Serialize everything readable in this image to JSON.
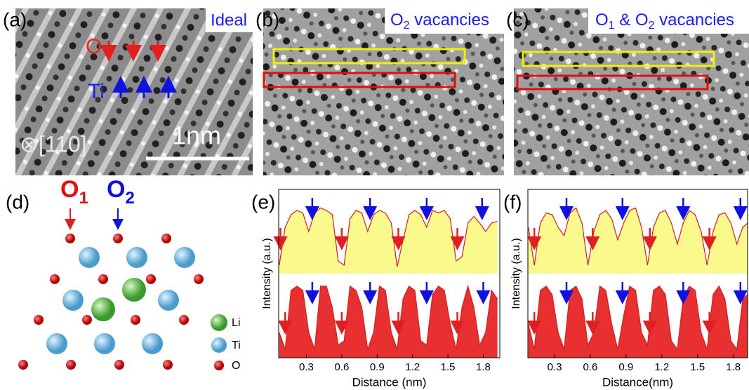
{
  "panels": {
    "a": {
      "label": "(a)",
      "caption": "Ideal",
      "o": "O",
      "ti": "Ti",
      "zone": "⊗[110]",
      "scale": "1nm"
    },
    "b": {
      "label": "(b)",
      "caption": [
        "O",
        "2",
        " vacancies"
      ]
    },
    "c": {
      "label": "(c)",
      "caption": [
        "O",
        "1",
        " & O",
        "2",
        " vacancies"
      ]
    },
    "d": {
      "label": "(d)",
      "o1": [
        "O",
        "1"
      ],
      "o2": [
        "O",
        "2"
      ],
      "legend": [
        "Li",
        "Ti",
        "O"
      ]
    }
  },
  "chart_data": [
    {
      "type": "area",
      "label": "(e)",
      "y_label": "Intensity (a.u.)",
      "x_label": "Distance (nm)",
      "xlim": [
        0.065,
        1.94
      ],
      "xticks": [
        0.3,
        0.6,
        0.9,
        1.2,
        1.5,
        1.8
      ],
      "ylim": [
        0,
        1
      ],
      "x": [
        0.07,
        0.12,
        0.17,
        0.22,
        0.27,
        0.32,
        0.37,
        0.42,
        0.47,
        0.52,
        0.57,
        0.62,
        0.67,
        0.72,
        0.77,
        0.82,
        0.87,
        0.92,
        0.97,
        1.02,
        1.07,
        1.12,
        1.17,
        1.22,
        1.27,
        1.32,
        1.37,
        1.42,
        1.47,
        1.52,
        1.57,
        1.62,
        1.67,
        1.72,
        1.77,
        1.82,
        1.87,
        1.92
      ],
      "series": [
        {
          "color": "#fafa8c",
          "line_color": "#d02020",
          "values": [
            0.1,
            0.55,
            0.7,
            0.75,
            0.72,
            0.5,
            0.72,
            0.78,
            0.75,
            0.7,
            0.15,
            0.1,
            0.65,
            0.75,
            0.72,
            0.5,
            0.7,
            0.75,
            0.72,
            0.6,
            0.08,
            0.4,
            0.7,
            0.75,
            0.7,
            0.55,
            0.75,
            0.72,
            0.75,
            0.65,
            0.15,
            0.2,
            0.6,
            0.68,
            0.6,
            0.5,
            0.6,
            0.62
          ],
          "arrows": [
            {
              "x": 0.08,
              "color": "#e02020"
            },
            {
              "x": 0.35,
              "color": "#1010e0"
            },
            {
              "x": 0.6,
              "color": "#e02020"
            },
            {
              "x": 0.84,
              "color": "#1010e0"
            },
            {
              "x": 1.08,
              "color": "#e02020"
            },
            {
              "x": 1.32,
              "color": "#1010e0"
            },
            {
              "x": 1.58,
              "color": "#e02020"
            },
            {
              "x": 1.79,
              "color": "#1010e0"
            }
          ]
        },
        {
          "color": "#e83030",
          "line_color": "#d02020",
          "values": [
            0.3,
            0.1,
            0.8,
            0.85,
            0.8,
            0.3,
            0.1,
            0.85,
            0.85,
            0.6,
            0.15,
            0.2,
            0.85,
            0.8,
            0.6,
            0.1,
            0.3,
            0.85,
            0.8,
            0.3,
            0.1,
            0.7,
            0.85,
            0.8,
            0.2,
            0.15,
            0.75,
            0.85,
            0.8,
            0.4,
            0.1,
            0.6,
            0.85,
            0.6,
            0.15,
            0.3,
            0.8,
            0.7
          ],
          "arrows": [
            {
              "x": 0.12,
              "color": "#e02020"
            },
            {
              "x": 0.35,
              "color": "#1010e0"
            },
            {
              "x": 0.6,
              "color": "#e02020"
            },
            {
              "x": 0.84,
              "color": "#1010e0"
            },
            {
              "x": 1.08,
              "color": "#e02020"
            },
            {
              "x": 1.32,
              "color": "#1010e0"
            },
            {
              "x": 1.58,
              "color": "#e02020"
            },
            {
              "x": 1.8,
              "color": "#1010e0"
            }
          ]
        }
      ]
    },
    {
      "type": "area",
      "label": "(f)",
      "y_label": "Intensity (a.u.)",
      "x_label": "Distance(nm)",
      "xlim": [
        0.076,
        1.92
      ],
      "xticks": [
        0.3,
        0.6,
        0.9,
        1.2,
        1.5,
        1.8
      ],
      "ylim": [
        0,
        1
      ],
      "x": [
        0.08,
        0.13,
        0.18,
        0.23,
        0.28,
        0.33,
        0.38,
        0.43,
        0.48,
        0.53,
        0.58,
        0.63,
        0.68,
        0.73,
        0.78,
        0.83,
        0.88,
        0.93,
        0.98,
        1.03,
        1.08,
        1.13,
        1.18,
        1.23,
        1.28,
        1.33,
        1.38,
        1.43,
        1.48,
        1.53,
        1.58,
        1.63,
        1.68,
        1.73,
        1.78,
        1.83,
        1.88,
        1.92
      ],
      "series": [
        {
          "color": "#fafa8c",
          "line_color": "#d02020",
          "values": [
            0.55,
            0.1,
            0.6,
            0.72,
            0.7,
            0.55,
            0.45,
            0.72,
            0.78,
            0.6,
            0.1,
            0.5,
            0.7,
            0.75,
            0.65,
            0.4,
            0.6,
            0.75,
            0.78,
            0.55,
            0.1,
            0.55,
            0.72,
            0.75,
            0.6,
            0.35,
            0.6,
            0.75,
            0.7,
            0.5,
            0.1,
            0.5,
            0.7,
            0.72,
            0.6,
            0.35,
            0.55,
            0.6
          ],
          "arrows": [
            {
              "x": 0.13,
              "color": "#e02020"
            },
            {
              "x": 0.4,
              "color": "#1010e0"
            },
            {
              "x": 0.62,
              "color": "#e02020"
            },
            {
              "x": 0.87,
              "color": "#1010e0"
            },
            {
              "x": 1.1,
              "color": "#e02020"
            },
            {
              "x": 1.38,
              "color": "#1010e0"
            },
            {
              "x": 1.6,
              "color": "#e02020"
            },
            {
              "x": 1.86,
              "color": "#1010e0"
            }
          ]
        },
        {
          "color": "#e83030",
          "line_color": "#d02020",
          "values": [
            0.4,
            0.1,
            0.8,
            0.85,
            0.75,
            0.3,
            0.1,
            0.8,
            0.85,
            0.7,
            0.15,
            0.3,
            0.85,
            0.8,
            0.4,
            0.1,
            0.5,
            0.85,
            0.8,
            0.3,
            0.15,
            0.8,
            0.85,
            0.75,
            0.2,
            0.1,
            0.7,
            0.85,
            0.8,
            0.3,
            0.1,
            0.75,
            0.85,
            0.7,
            0.2,
            0.1,
            0.7,
            0.75
          ],
          "arrows": [
            {
              "x": 0.13,
              "color": "#e02020"
            },
            {
              "x": 0.4,
              "color": "#1010e0"
            },
            {
              "x": 0.62,
              "color": "#e02020"
            },
            {
              "x": 0.87,
              "color": "#1010e0"
            },
            {
              "x": 1.1,
              "color": "#e02020"
            },
            {
              "x": 1.38,
              "color": "#1010e0"
            },
            {
              "x": 1.6,
              "color": "#e02020"
            },
            {
              "x": 1.86,
              "color": "#1010e0"
            }
          ]
        }
      ]
    }
  ]
}
